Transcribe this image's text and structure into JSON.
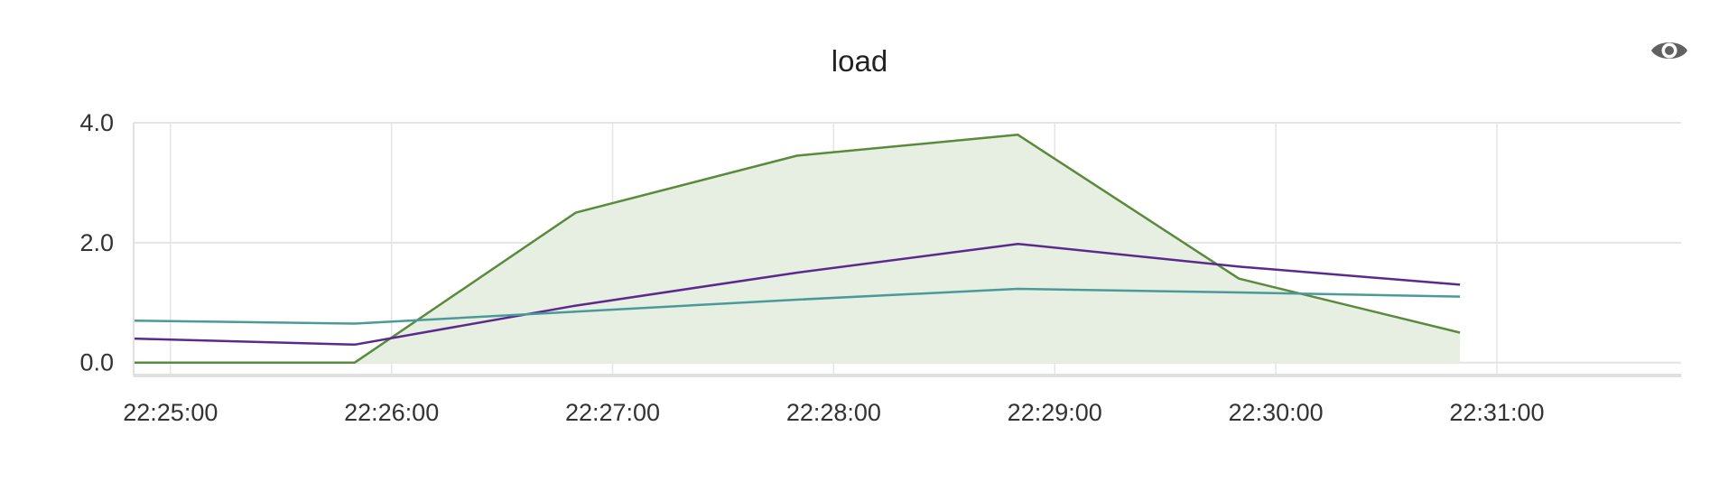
{
  "chart_data": {
    "type": "line",
    "title": "load",
    "xlabel": "",
    "ylabel": "",
    "x": [
      "22:24:50",
      "22:25:50",
      "22:26:50",
      "22:27:50",
      "22:28:50",
      "22:29:50",
      "22:30:50"
    ],
    "x_ticks": [
      "22:25:00",
      "22:26:00",
      "22:27:00",
      "22:28:00",
      "22:29:00",
      "22:30:00",
      "22:31:00"
    ],
    "x_range": [
      "22:24:50",
      "22:31:50"
    ],
    "y_ticks": [
      "0.0",
      "2.0",
      "4.0"
    ],
    "ylim": [
      -0.2,
      4.0
    ],
    "grid": true,
    "legend": "none",
    "series": [
      {
        "style": "area",
        "color": "#5a8a3c",
        "fill": "#e6efe1",
        "values": [
          0.0,
          0.0,
          2.5,
          3.45,
          3.8,
          1.4,
          0.5
        ]
      },
      {
        "style": "line",
        "color": "#5b2a8c",
        "values": [
          0.4,
          0.3,
          0.95,
          1.5,
          1.98,
          1.6,
          1.3
        ]
      },
      {
        "style": "line",
        "color": "#4a9a9a",
        "values": [
          0.7,
          0.65,
          0.85,
          1.05,
          1.23,
          1.17,
          1.1
        ]
      }
    ]
  },
  "toolbar": {
    "visibility_icon": "eye-icon"
  }
}
